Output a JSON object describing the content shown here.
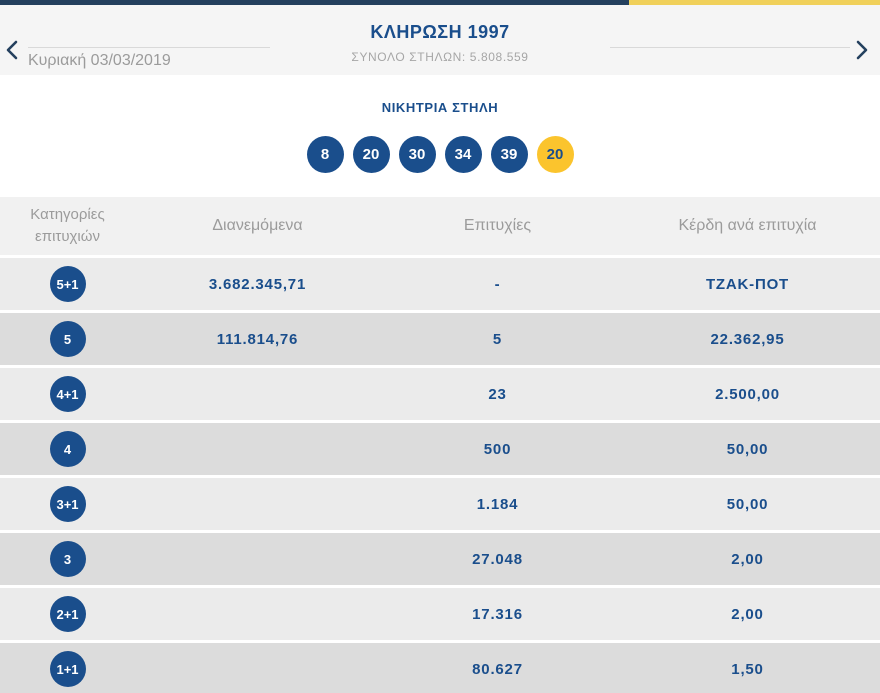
{
  "colors": {
    "accent_blue": "#1a4e8c",
    "topbar_navy": "#24405e",
    "topbar_yellow": "#f0d05a",
    "joker_yellow": "#fbc42d",
    "muted_gray_text": "#9b9b9b",
    "row_light": "#ebebeb",
    "row_dark": "#dcdcdc"
  },
  "header": {
    "date": "Κυριακή 03/03/2019",
    "title": "ΚΛΗΡΩΣΗ 1997",
    "subtitle": "ΣΥΝΟΛΟ ΣΤΗΛΩΝ: 5.808.559"
  },
  "winning_column": {
    "label": "ΝΙΚΗΤΡΙΑ ΣΤΗΛΗ",
    "numbers": [
      "8",
      "20",
      "30",
      "34",
      "39"
    ],
    "joker": "20"
  },
  "table": {
    "columns": {
      "categories": "Κατηγορίες επιτυχιών",
      "distributed": "Διανεμόμενα",
      "winners": "Επιτυχίες",
      "prize": "Κέρδη ανά επιτυχία"
    },
    "rows": [
      {
        "category": "5+1",
        "distributed": "3.682.345,71",
        "winners": "-",
        "prize": "ΤΖΑΚ-ΠΟΤ"
      },
      {
        "category": "5",
        "distributed": "111.814,76",
        "winners": "5",
        "prize": "22.362,95"
      },
      {
        "category": "4+1",
        "distributed": "",
        "winners": "23",
        "prize": "2.500,00"
      },
      {
        "category": "4",
        "distributed": "",
        "winners": "500",
        "prize": "50,00"
      },
      {
        "category": "3+1",
        "distributed": "",
        "winners": "1.184",
        "prize": "50,00"
      },
      {
        "category": "3",
        "distributed": "",
        "winners": "27.048",
        "prize": "2,00"
      },
      {
        "category": "2+1",
        "distributed": "",
        "winners": "17.316",
        "prize": "2,00"
      },
      {
        "category": "1+1",
        "distributed": "",
        "winners": "80.627",
        "prize": "1,50"
      }
    ]
  }
}
